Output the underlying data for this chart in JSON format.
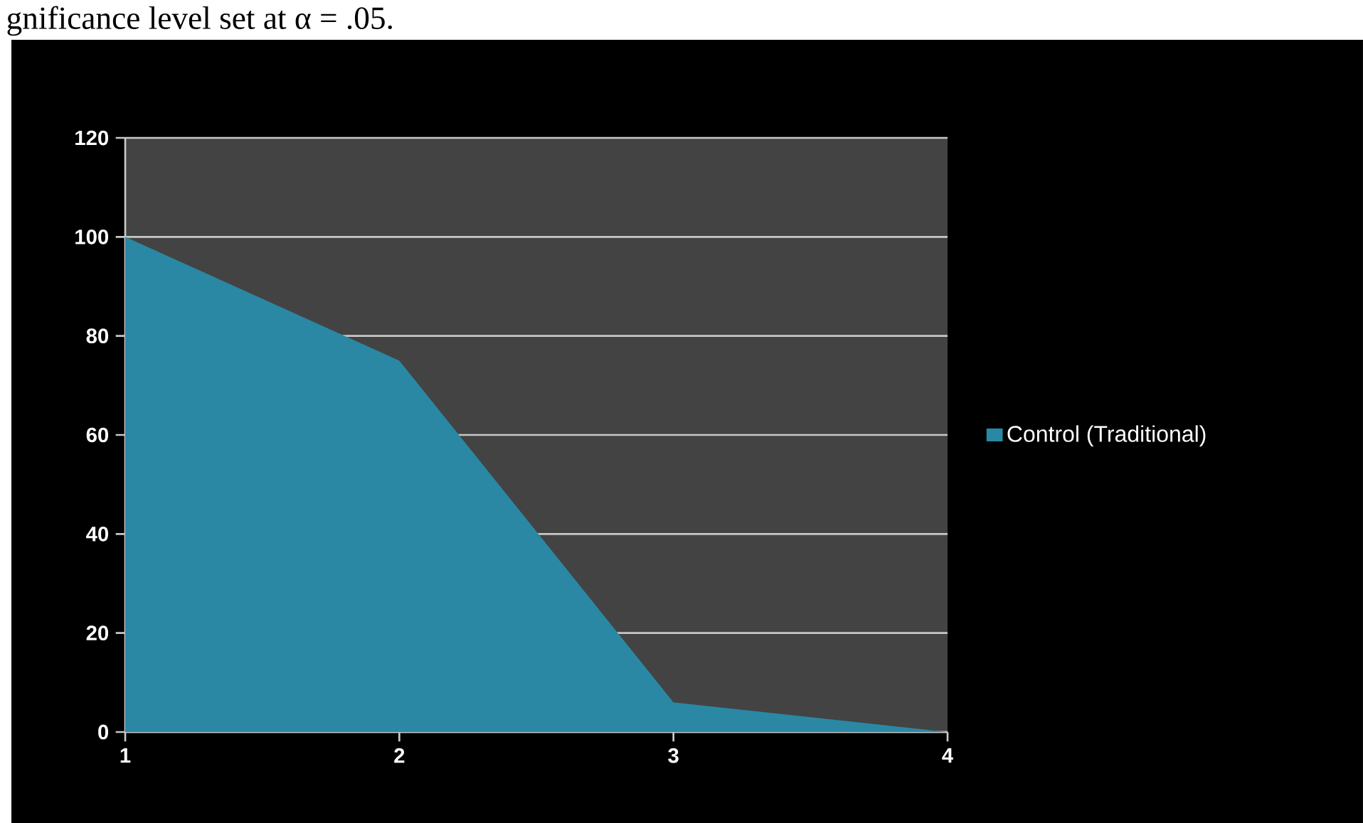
{
  "chart_data": {
    "type": "area",
    "annotations": [
      "gnificance level set at α = .05."
    ],
    "x": [
      1,
      2,
      3,
      4
    ],
    "series": [
      {
        "name": "Control (Traditional)",
        "color": "#2a88a4",
        "values": [
          100,
          75,
          6,
          0
        ]
      }
    ],
    "xlim": [
      1,
      4
    ],
    "ylim": [
      0,
      120
    ],
    "xticks": [
      1,
      2,
      3,
      4
    ],
    "yticks": [
      0,
      20,
      40,
      60,
      80,
      100,
      120
    ],
    "grid": "y",
    "legend": "right"
  }
}
